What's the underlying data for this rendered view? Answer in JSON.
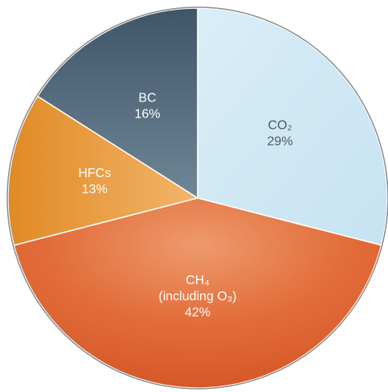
{
  "chart_data": {
    "type": "pie",
    "title": "",
    "slices": [
      {
        "name": "CO2",
        "value": 29,
        "label": "CO₂",
        "percent": "29%",
        "color": "#cfe7f4"
      },
      {
        "name": "CH4 (including O3)",
        "value": 42,
        "label": "CH₄",
        "sublabel": "(including O₃)",
        "percent": "42%",
        "color": "#e06c38"
      },
      {
        "name": "HFCs",
        "value": 13,
        "label": "HFCs",
        "percent": "13%",
        "color": "#ea9c36"
      },
      {
        "name": "BC",
        "value": 16,
        "label": "BC",
        "percent": "16%",
        "color": "#4a6174"
      }
    ]
  }
}
